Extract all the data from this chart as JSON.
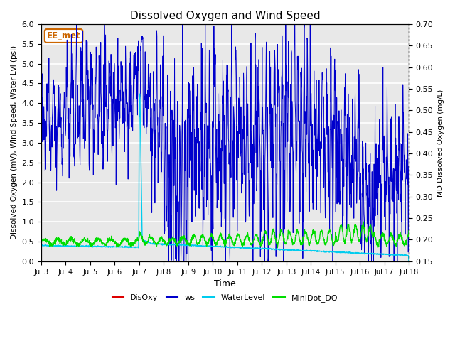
{
  "title": "Dissolved Oxygen and Wind Speed",
  "xlabel": "Time",
  "ylabel_left": "Dissolved Oxygen (mV), Wind Speed, Water Lvl (psi)",
  "ylabel_right": "MD Dissolved Oxygen (mg/L)",
  "ylim_left": [
    0.0,
    6.0
  ],
  "ylim_right": [
    0.15,
    0.7
  ],
  "yticks_left": [
    0.0,
    0.5,
    1.0,
    1.5,
    2.0,
    2.5,
    3.0,
    3.5,
    4.0,
    4.5,
    5.0,
    5.5,
    6.0
  ],
  "yticks_right": [
    0.15,
    0.2,
    0.25,
    0.3,
    0.35,
    0.4,
    0.45,
    0.5,
    0.55,
    0.6,
    0.65,
    0.7
  ],
  "xtick_labels": [
    "Jul 3",
    "Jul 4",
    "Jul 5",
    "Jul 6",
    "Jul 7",
    "Jul 8",
    "Jul 9",
    "Jul 10",
    "Jul 11",
    "Jul 12",
    "Jul 13",
    "Jul 14",
    "Jul 15",
    "Jul 16",
    "Jul 17",
    "Jul 18"
  ],
  "annotation_text": "EE_met",
  "annotation_fg": "#cc6600",
  "annotation_bg": "white",
  "bg_color": "#e8e8e8",
  "grid_color": "white",
  "colors": {
    "DisOxy": "#dd0000",
    "ws": "#0000cc",
    "WaterLevel": "#00ccee",
    "MiniDot_DO": "#00dd00"
  },
  "legend_labels": [
    "DisOxy",
    "ws",
    "WaterLevel",
    "MiniDot_DO"
  ]
}
